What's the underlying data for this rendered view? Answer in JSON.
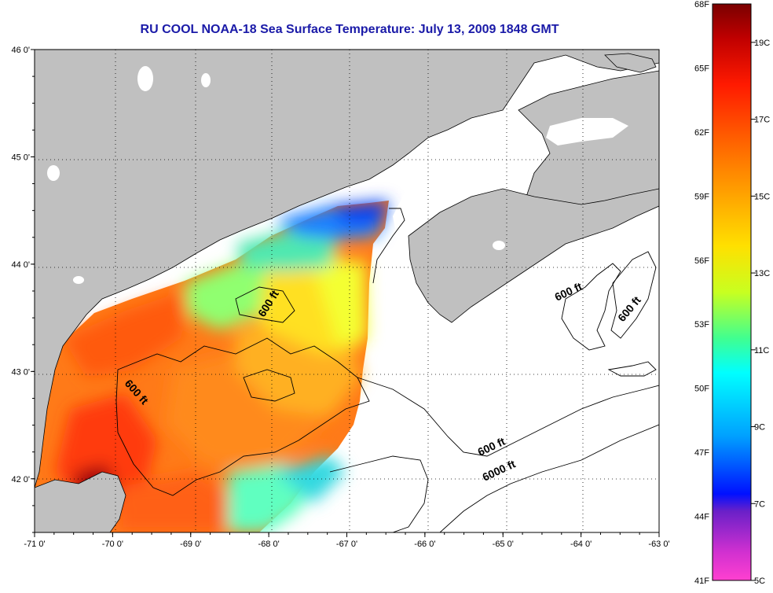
{
  "title": "RU COOL  NOAA-18  Sea Surface Temperature:  July 13, 2009 1848 GMT",
  "map": {
    "region": "Gulf of Maine",
    "lon_range": [
      -71,
      -63
    ],
    "lat_range": [
      41.5,
      46
    ],
    "lon_ticks": [
      "-71 0'",
      "-70 0'",
      "-69 0'",
      "-68 0'",
      "-67 0'",
      "-66 0'",
      "-65 0'",
      "-64 0'",
      "-63 0'"
    ],
    "lat_ticks": [
      "46 0'",
      "45 0'",
      "44 0'",
      "43 0'",
      "42 0'"
    ],
    "contour_labels": [
      "600 ft",
      "600 ft",
      "600 ft",
      "600 ft",
      "6000 ft",
      "600 ft"
    ],
    "colors": {
      "land": "#c0c0c0",
      "ocean_nodata": "#ffffff",
      "title": "#1a1aa8"
    }
  },
  "colorbar": {
    "f_labels": [
      "68F",
      "65F",
      "62F",
      "59F",
      "56F",
      "53F",
      "50F",
      "47F",
      "44F",
      "41F"
    ],
    "c_labels": [
      "19C",
      "17C",
      "15C",
      "13C",
      "11C",
      "9C",
      "7C",
      "5C"
    ],
    "range_f": [
      41,
      68
    ],
    "range_c": [
      5,
      20
    ]
  }
}
